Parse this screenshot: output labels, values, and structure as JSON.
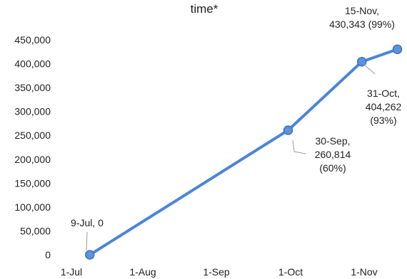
{
  "chart_data": {
    "type": "line",
    "title": "time*",
    "xlabel": "",
    "ylabel": "",
    "x_tick_labels": [
      "1-Jul",
      "1-Aug",
      "1-Sep",
      "1-Oct",
      "1-Nov"
    ],
    "y_tick_labels": [
      "0",
      "50,000",
      "100,000",
      "150,000",
      "200,000",
      "250,000",
      "300,000",
      "350,000",
      "400,000",
      "450,000"
    ],
    "ylim": [
      0,
      450000
    ],
    "grid": false,
    "legend": "none",
    "colors": {
      "line": "#4a86d8",
      "marker": "#5b93dc",
      "marker_edge": "#3f73bd"
    },
    "series": [
      {
        "points": [
          {
            "x": "2020-07-09",
            "y": 0,
            "label_lines": [
              "9-Jul, 0"
            ]
          },
          {
            "x": "2020-09-30",
            "y": 260814,
            "label_lines": [
              "30-Sep,",
              "260,814",
              "(60%)"
            ]
          },
          {
            "x": "2020-10-31",
            "y": 404262,
            "label_lines": [
              "31-Oct,",
              "404,262",
              "(93%)"
            ]
          },
          {
            "x": "2020-11-15",
            "y": 430343,
            "label_lines": [
              "15-Nov,",
              "430,343  (99%)"
            ]
          }
        ]
      }
    ]
  }
}
